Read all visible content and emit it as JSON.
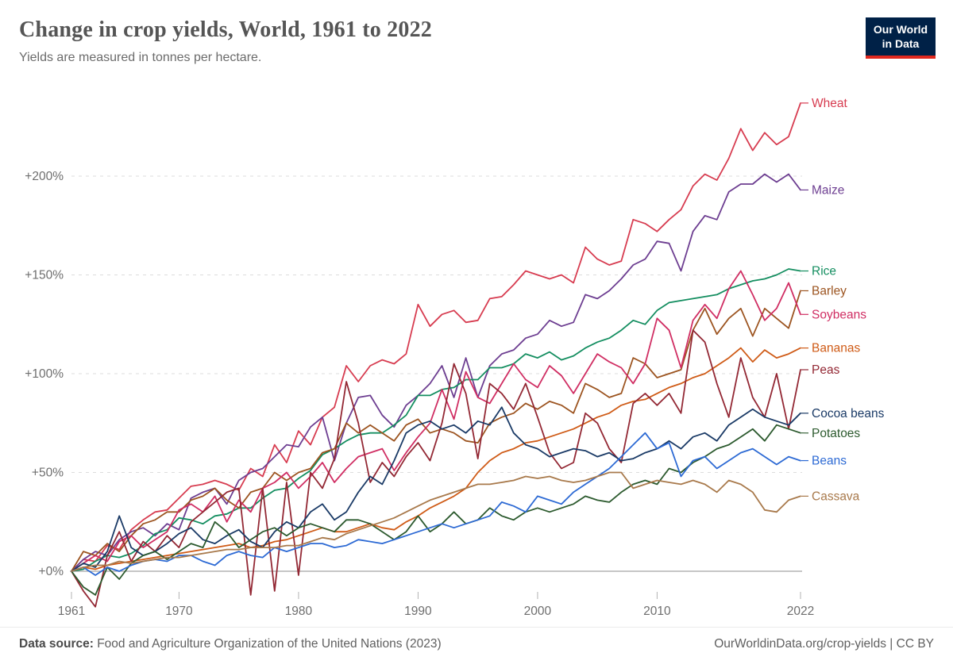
{
  "header": {
    "title": "Change in crop yields, World, 1961 to 2022",
    "subtitle": "Yields are measured in tonnes per hectare.",
    "logo": {
      "line1": "Our World",
      "line2": "in Data",
      "bg_color": "#002147",
      "stripe_color": "#e0281e"
    }
  },
  "footer": {
    "source_label": "Data source:",
    "source_text": " Food and Agriculture Organization of the United Nations (2023)",
    "citation": "OurWorldinData.org/crop-yields | CC BY"
  },
  "chart_data": {
    "type": "line",
    "title": "Change in crop yields, World, 1961 to 2022",
    "xlabel": "",
    "ylabel": "",
    "x_range": [
      1961,
      2022
    ],
    "y_axis_unit": "%",
    "ylim": [
      -25,
      245
    ],
    "grid": "horizontal dashed, solid zero line",
    "legend_position": "right edge labels",
    "x_ticks": [
      {
        "year": 1961,
        "label": "1961"
      },
      {
        "year": 1970,
        "label": "1970"
      },
      {
        "year": 1980,
        "label": "1980"
      },
      {
        "year": 1990,
        "label": "1990"
      },
      {
        "year": 2000,
        "label": "2000"
      },
      {
        "year": 2010,
        "label": "2010"
      },
      {
        "year": 2022,
        "label": "2022"
      }
    ],
    "y_ticks": [
      {
        "value": 0,
        "label": "+0%"
      },
      {
        "value": 50,
        "label": "+50%"
      },
      {
        "value": 100,
        "label": "+100%"
      },
      {
        "value": 150,
        "label": "+150%"
      },
      {
        "value": 200,
        "label": "+200%"
      }
    ],
    "start_year": 1961,
    "series": [
      {
        "name": "Wheat",
        "color": "#d73c50",
        "values": [
          0,
          6,
          5,
          13,
          11,
          21,
          26,
          30,
          31,
          37,
          43,
          44,
          46,
          44,
          41,
          52,
          48,
          64,
          55,
          71,
          64,
          78,
          83,
          104,
          96,
          104,
          107,
          105,
          110,
          135,
          124,
          130,
          132,
          126,
          127,
          138,
          139,
          145,
          152,
          150,
          148,
          150,
          146,
          164,
          158,
          155,
          157,
          178,
          176,
          172,
          178,
          183,
          195,
          201,
          198,
          209,
          224,
          213,
          222,
          216,
          220,
          237
        ]
      },
      {
        "name": "Maize",
        "color": "#6d3e91",
        "values": [
          0,
          6,
          10,
          8,
          16,
          20,
          22,
          18,
          24,
          21,
          37,
          40,
          42,
          34,
          46,
          50,
          52,
          58,
          64,
          63,
          73,
          78,
          56,
          75,
          88,
          89,
          79,
          73,
          84,
          89,
          95,
          104,
          88,
          108,
          88,
          104,
          110,
          112,
          118,
          120,
          127,
          124,
          126,
          140,
          138,
          142,
          148,
          155,
          158,
          167,
          166,
          152,
          172,
          180,
          178,
          192,
          196,
          196,
          201,
          197,
          201,
          193
        ]
      },
      {
        "name": "Rice",
        "color": "#148e60",
        "values": [
          0,
          1,
          5,
          8,
          7,
          9,
          13,
          19,
          21,
          27,
          26,
          24,
          28,
          29,
          32,
          32,
          37,
          41,
          42,
          47,
          51,
          59,
          62,
          66,
          69,
          70,
          70,
          74,
          79,
          89,
          89,
          92,
          93,
          97,
          97,
          103,
          103,
          105,
          110,
          108,
          111,
          107,
          109,
          113,
          116,
          118,
          122,
          127,
          125,
          132,
          136,
          137,
          138,
          139,
          140,
          143,
          145,
          147,
          148,
          150,
          153,
          152
        ]
      },
      {
        "name": "Barley",
        "color": "#9c5420",
        "values": [
          0,
          10,
          8,
          14,
          10,
          18,
          24,
          26,
          30,
          30,
          36,
          38,
          42,
          36,
          32,
          40,
          42,
          50,
          46,
          50,
          52,
          60,
          62,
          75,
          70,
          74,
          70,
          66,
          74,
          77,
          70,
          72,
          70,
          66,
          65,
          75,
          78,
          80,
          85,
          82,
          86,
          84,
          80,
          95,
          92,
          88,
          90,
          108,
          105,
          98,
          100,
          102,
          122,
          133,
          120,
          128,
          133,
          119,
          133,
          128,
          123,
          142
        ]
      },
      {
        "name": "Soybeans",
        "color": "#d02e63",
        "values": [
          0,
          4,
          8,
          5,
          15,
          18,
          12,
          16,
          20,
          31,
          34,
          30,
          38,
          25,
          36,
          30,
          42,
          45,
          50,
          42,
          48,
          55,
          45,
          52,
          58,
          60,
          62,
          51,
          60,
          68,
          75,
          92,
          77,
          101,
          88,
          85,
          95,
          105,
          97,
          93,
          104,
          99,
          90,
          100,
          110,
          106,
          103,
          95,
          105,
          128,
          122,
          103,
          127,
          135,
          128,
          143,
          152,
          140,
          127,
          133,
          146,
          130
        ]
      },
      {
        "name": "Bananas",
        "color": "#cf5b17",
        "values": [
          0,
          2,
          1,
          3,
          4,
          5,
          6,
          7,
          8,
          9,
          10,
          11,
          12,
          13,
          14,
          12,
          13,
          15,
          16,
          18,
          20,
          22,
          20,
          20,
          22,
          24,
          22,
          21,
          25,
          28,
          32,
          35,
          38,
          42,
          50,
          56,
          60,
          62,
          65,
          66,
          68,
          70,
          72,
          75,
          78,
          80,
          84,
          86,
          87,
          90,
          93,
          95,
          98,
          100,
          104,
          108,
          113,
          106,
          112,
          108,
          110,
          113
        ]
      },
      {
        "name": "Peas",
        "color": "#932834",
        "values": [
          0,
          -10,
          -18,
          8,
          20,
          5,
          15,
          10,
          18,
          12,
          25,
          30,
          35,
          40,
          42,
          -12,
          42,
          -10,
          45,
          -2,
          50,
          42,
          57,
          96,
          75,
          45,
          55,
          48,
          58,
          65,
          56,
          75,
          105,
          90,
          57,
          95,
          90,
          82,
          95,
          78,
          60,
          52,
          55,
          80,
          75,
          62,
          55,
          85,
          90,
          84,
          90,
          80,
          122,
          116,
          95,
          78,
          108,
          88,
          78,
          100,
          72,
          102
        ]
      },
      {
        "name": "Cocoa beans",
        "color": "#1a3a66",
        "values": [
          0,
          4,
          2,
          10,
          28,
          12,
          8,
          10,
          14,
          19,
          22,
          16,
          14,
          18,
          21,
          15,
          12,
          20,
          25,
          22,
          30,
          34,
          26,
          30,
          40,
          48,
          44,
          56,
          70,
          74,
          76,
          72,
          74,
          70,
          76,
          74,
          83,
          70,
          64,
          62,
          58,
          60,
          62,
          61,
          58,
          60,
          56,
          57,
          60,
          62,
          66,
          62,
          68,
          70,
          66,
          74,
          78,
          82,
          78,
          76,
          74,
          80
        ]
      },
      {
        "name": "Potatoes",
        "color": "#2c5a2e",
        "values": [
          0,
          -8,
          -12,
          2,
          -4,
          4,
          8,
          10,
          6,
          10,
          14,
          12,
          25,
          20,
          12,
          16,
          20,
          22,
          18,
          22,
          24,
          22,
          20,
          26,
          26,
          24,
          20,
          16,
          20,
          28,
          20,
          24,
          30,
          24,
          26,
          32,
          28,
          26,
          30,
          32,
          30,
          32,
          34,
          38,
          36,
          35,
          40,
          44,
          46,
          44,
          52,
          50,
          55,
          58,
          62,
          64,
          68,
          72,
          66,
          74,
          72,
          70
        ]
      },
      {
        "name": "Beans",
        "color": "#2d6ad4",
        "values": [
          0,
          2,
          -2,
          2,
          0,
          3,
          5,
          6,
          5,
          8,
          8,
          5,
          3,
          8,
          10,
          8,
          7,
          12,
          10,
          12,
          14,
          14,
          12,
          13,
          16,
          15,
          14,
          16,
          18,
          20,
          22,
          24,
          22,
          24,
          26,
          28,
          35,
          33,
          30,
          38,
          36,
          34,
          40,
          44,
          48,
          52,
          58,
          64,
          70,
          62,
          65,
          48,
          56,
          58,
          52,
          56,
          60,
          62,
          58,
          54,
          58,
          56
        ]
      },
      {
        "name": "Cassava",
        "color": "#a8794b",
        "values": [
          0,
          2,
          3,
          3,
          5,
          4,
          5,
          6,
          7,
          7,
          8,
          9,
          10,
          11,
          11,
          12,
          12,
          12,
          13,
          13,
          15,
          17,
          16,
          19,
          21,
          23,
          25,
          27,
          30,
          33,
          36,
          38,
          40,
          42,
          44,
          44,
          45,
          46,
          48,
          47,
          48,
          46,
          45,
          46,
          48,
          50,
          50,
          42,
          44,
          46,
          45,
          44,
          46,
          44,
          40,
          46,
          44,
          40,
          31,
          30,
          36,
          38
        ]
      }
    ]
  }
}
